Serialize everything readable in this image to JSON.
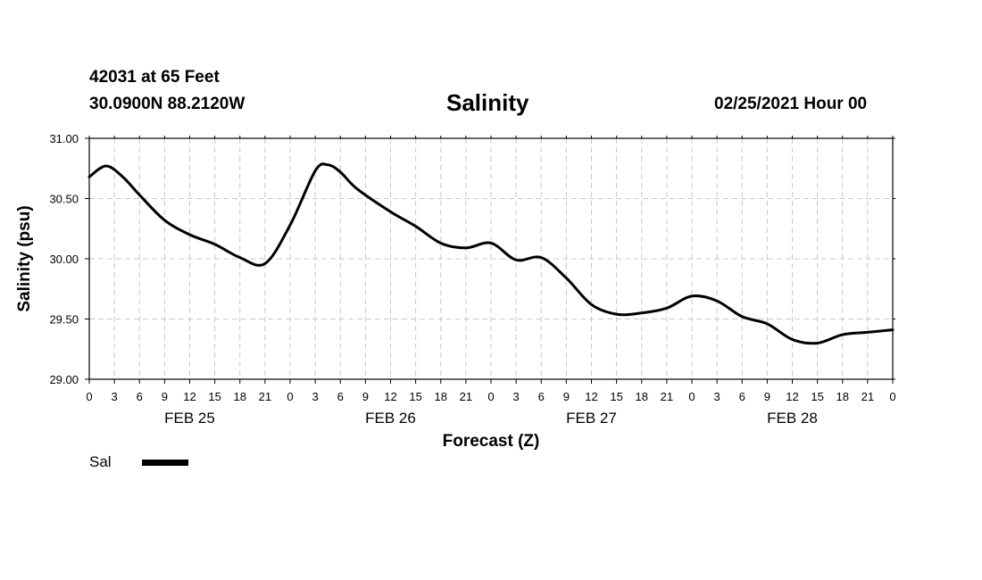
{
  "header": {
    "station": "42031 at 65 Feet",
    "coords": "30.0900N 88.2120W",
    "title": "Salinity",
    "run": "02/25/2021 Hour 00"
  },
  "chart_data": {
    "type": "line",
    "title": "Salinity",
    "xlabel": "Forecast (Z)",
    "ylabel": "Salinity (psu)",
    "ylim": [
      29.0,
      31.0
    ],
    "yticks": [
      "29.00",
      "29.50",
      "30.00",
      "30.50",
      "31.00"
    ],
    "yvalues": [
      29.0,
      29.5,
      30.0,
      30.5,
      31.0
    ],
    "xlim": [
      0,
      96
    ],
    "xtick_step": 3,
    "xtick_labels": [
      "0",
      "3",
      "6",
      "9",
      "12",
      "15",
      "18",
      "21",
      "0",
      "3",
      "6",
      "9",
      "12",
      "15",
      "18",
      "21",
      "0",
      "3",
      "6",
      "9",
      "12",
      "15",
      "18",
      "21",
      "0",
      "3",
      "6",
      "9",
      "12",
      "15",
      "18",
      "21",
      "0"
    ],
    "day_labels": [
      {
        "label": "FEB 25",
        "hour": 12
      },
      {
        "label": "FEB 26",
        "hour": 36
      },
      {
        "label": "FEB 27",
        "hour": 60
      },
      {
        "label": "FEB 28",
        "hour": 84
      }
    ],
    "grid": true,
    "legend_position": "bottom-left",
    "series": [
      {
        "name": "Sal",
        "color": "#000000",
        "x": [
          0,
          2,
          4,
          6,
          9,
          12,
          15,
          18,
          21,
          24,
          27,
          28.5,
          30,
          32,
          36,
          39,
          42,
          45,
          48,
          51,
          54,
          57,
          60,
          63,
          66,
          69,
          72,
          75,
          78,
          81,
          84,
          87,
          90,
          93,
          96
        ],
        "values": [
          30.68,
          30.77,
          30.68,
          30.53,
          30.32,
          30.2,
          30.12,
          30.01,
          29.96,
          30.28,
          30.73,
          30.78,
          30.72,
          30.58,
          30.39,
          30.27,
          30.13,
          30.09,
          30.13,
          29.99,
          30.01,
          29.84,
          29.62,
          29.54,
          29.55,
          29.59,
          29.69,
          29.65,
          29.52,
          29.46,
          29.33,
          29.3,
          29.37,
          29.39,
          29.41
        ]
      }
    ]
  },
  "legend": {
    "label": "Sal"
  }
}
